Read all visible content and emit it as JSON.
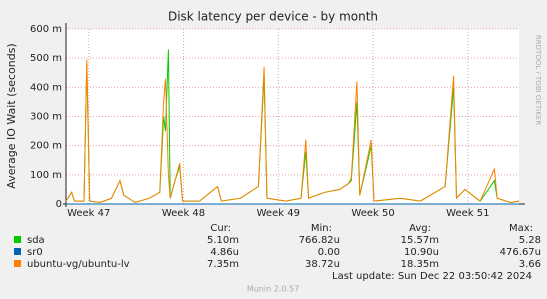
{
  "chart_data": {
    "type": "line",
    "title": "Disk latency per device - by month",
    "y_label": "Average IO Wait (seconds)",
    "x": [
      46.76,
      46.8,
      46.82,
      46.85,
      46.95,
      46.98,
      47.01,
      47.12,
      47.24,
      47.33,
      47.37,
      47.49,
      47.64,
      47.75,
      47.79,
      47.81,
      47.84,
      47.86,
      47.91,
      47.96,
      47.99,
      48.17,
      48.36,
      48.4,
      48.6,
      48.79,
      48.85,
      48.88,
      49.08,
      49.24,
      49.29,
      49.32,
      49.49,
      49.65,
      49.74,
      49.77,
      49.83,
      49.86,
      49.98,
      50.01,
      50.29,
      50.5,
      50.76,
      50.85,
      50.88,
      50.97,
      51.13,
      51.28,
      51.31,
      51.45,
      51.54
    ],
    "xlim": [
      46.76,
      51.54
    ],
    "xticks": [
      {
        "value": 47,
        "label": "Week 47"
      },
      {
        "value": 48,
        "label": "Week 48"
      },
      {
        "value": 49,
        "label": "Week 49"
      },
      {
        "value": 50,
        "label": "Week 50"
      },
      {
        "value": 51,
        "label": "Week 51"
      }
    ],
    "ylim": [
      0,
      0.6
    ],
    "yticks": [
      0,
      {
        "value": 0.1,
        "label": "100 m"
      },
      {
        "value": 0.2,
        "label": "200 m"
      },
      {
        "value": 0.3,
        "label": "300 m"
      },
      {
        "value": 0.4,
        "label": "400 m"
      },
      {
        "value": 0.5,
        "label": "500 m"
      },
      {
        "value": 0.6,
        "label": "600 m"
      }
    ],
    "grid": true,
    "series": [
      {
        "name": "sda",
        "color": "#00cc00",
        "values": [
          0.01,
          0.03,
          0.04,
          0.01,
          0.01,
          0.48,
          0.01,
          0.005,
          0.02,
          0.08,
          0.03,
          0.005,
          0.02,
          0.04,
          0.3,
          0.25,
          0.53,
          0.02,
          0.08,
          0.13,
          0.01,
          0.01,
          0.06,
          0.01,
          0.02,
          0.06,
          0.44,
          0.02,
          0.01,
          0.02,
          0.18,
          0.02,
          0.04,
          0.05,
          0.07,
          0.08,
          0.35,
          0.03,
          0.2,
          0.01,
          0.02,
          0.01,
          0.06,
          0.4,
          0.02,
          0.05,
          0.01,
          0.08,
          0.02,
          0.005,
          0.01
        ]
      },
      {
        "name": "sr0",
        "color": "#0066b3",
        "values": [
          0,
          0,
          0,
          0,
          0,
          0,
          0,
          0,
          0,
          0,
          0,
          0,
          0,
          0,
          0,
          0,
          0,
          0,
          0,
          0,
          0,
          0,
          0,
          0,
          0,
          0,
          0,
          0,
          0,
          0,
          0,
          0,
          0,
          0,
          0,
          0,
          0,
          0,
          0,
          0,
          0,
          0,
          0,
          0,
          0,
          0,
          0,
          0,
          0,
          0,
          0
        ]
      },
      {
        "name": "ubuntu-vg/ubuntu-lv",
        "color": "#ff8000",
        "values": [
          0.01,
          0.03,
          0.04,
          0.01,
          0.01,
          0.495,
          0.01,
          0.005,
          0.02,
          0.08,
          0.03,
          0.005,
          0.02,
          0.04,
          0.35,
          0.43,
          0.1,
          0.02,
          0.08,
          0.14,
          0.01,
          0.01,
          0.06,
          0.01,
          0.02,
          0.06,
          0.47,
          0.02,
          0.01,
          0.02,
          0.22,
          0.02,
          0.04,
          0.05,
          0.07,
          0.09,
          0.42,
          0.03,
          0.22,
          0.01,
          0.02,
          0.01,
          0.06,
          0.44,
          0.02,
          0.05,
          0.01,
          0.12,
          0.02,
          0.005,
          0.01
        ]
      }
    ]
  },
  "legend_table": {
    "columns": [
      "Cur:",
      "Min:",
      "Avg:",
      "Max:"
    ],
    "rows": [
      [
        "5.10m",
        "766.82u",
        "15.57m",
        "5.28"
      ],
      [
        "4.86u",
        "0.00",
        "10.90u",
        "476.67u"
      ],
      [
        "7.35m",
        "38.72u",
        "18.35m",
        "3.66"
      ]
    ]
  },
  "last_update": "Last update: Sun Dec 22 03:50:42 2024",
  "footer": "Munin 2.0.57",
  "watermark": "RRDTOOL / TOBI OETIKER"
}
